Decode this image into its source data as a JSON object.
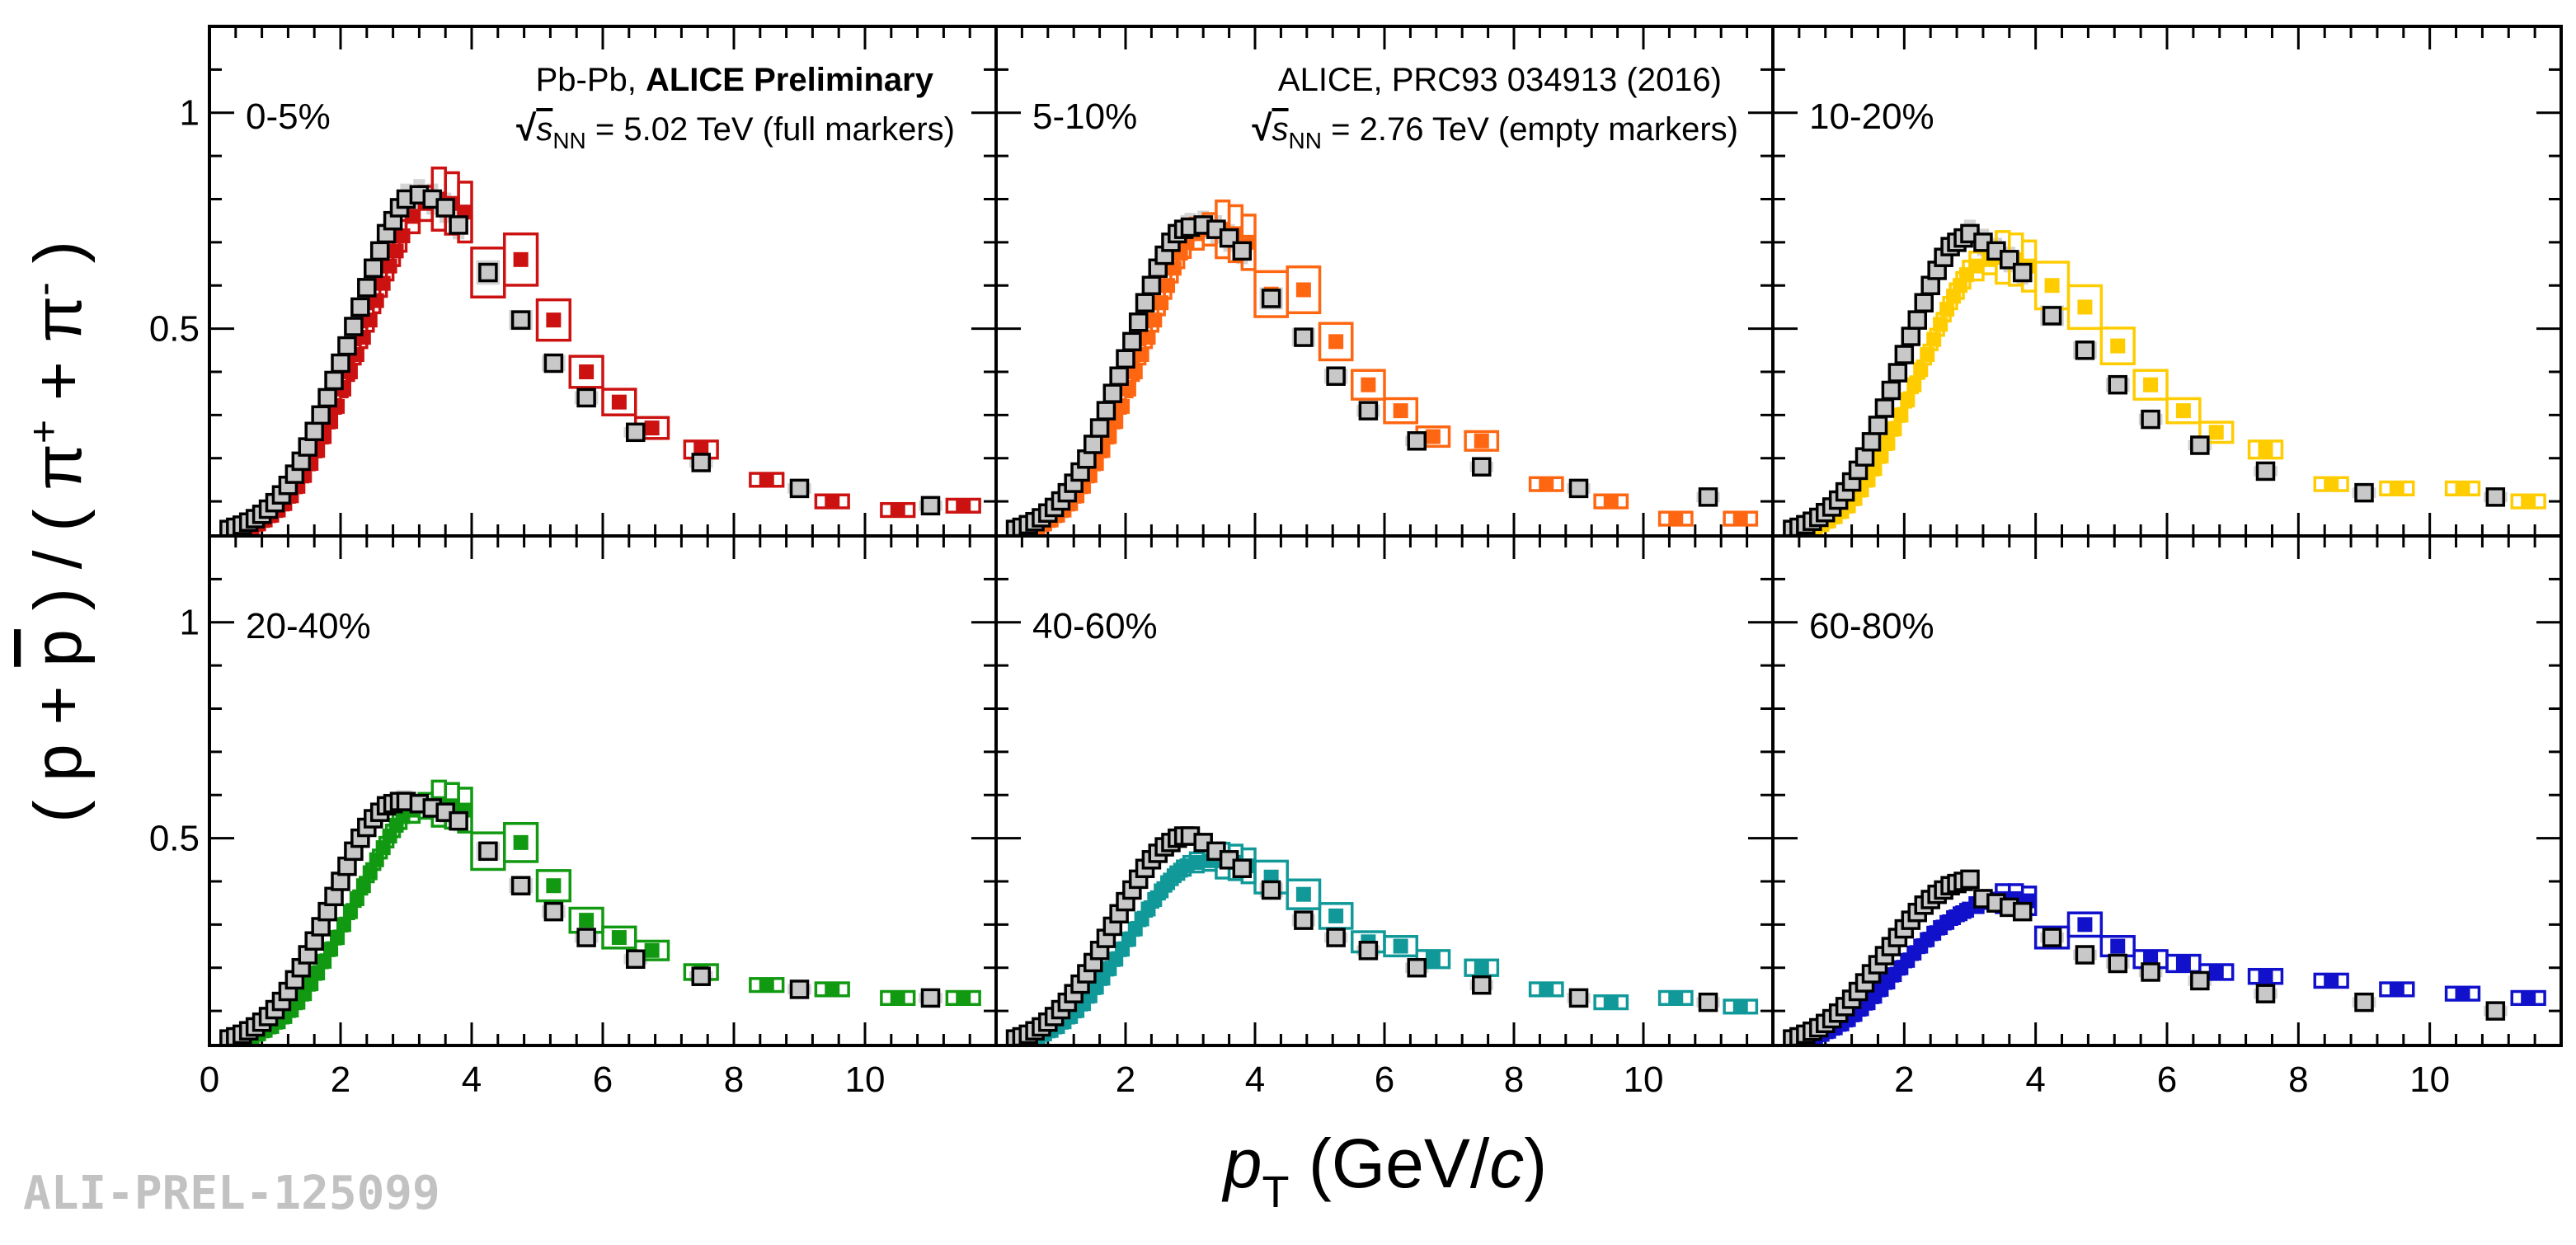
{
  "chart_data": {
    "type": "scatter",
    "title": "",
    "xlabel": "p_T (GeV/c)",
    "xlabel_parts": {
      "symbol": "p",
      "subscript": "T",
      "unit_open": " (GeV/",
      "unit_c": "c",
      "unit_close": ")"
    },
    "ylabel": "( p + p̄ ) / ( π⁺ + π⁻ )",
    "ylabel_parts": {
      "open": "( p + ",
      "pbar": "p",
      "mid": " ) / ( π",
      "plus": "+",
      "between": " + π",
      "minus": "-",
      "close": " )"
    },
    "xlim": [
      0,
      12
    ],
    "ylim": [
      0.02,
      1.2
    ],
    "x_ticks_first_column": [
      "0",
      "2",
      "4",
      "6",
      "8",
      "10"
    ],
    "x_ticks_other_columns": [
      "2",
      "4",
      "6",
      "8",
      "10"
    ],
    "y_ticks": [
      "0.5",
      "1"
    ],
    "legend": {
      "left": {
        "prefix": "Pb-Pb, ",
        "bold": "ALICE Preliminary",
        "energy_pre": "s",
        "energy_sub": "NN",
        "energy_post": " = 5.02 TeV (full markers)"
      },
      "right": {
        "line1": "ALICE, PRC93 034913 (2016)",
        "energy_pre": "s",
        "energy_sub": "NN",
        "energy_post": " = 2.76 TeV (empty markers)"
      }
    },
    "watermark": "ALI-PREL-125099",
    "reference_x": [
      0.3,
      0.4,
      0.5,
      0.6,
      0.7,
      0.8,
      0.9,
      1.0,
      1.1,
      1.2,
      1.3,
      1.4,
      1.5,
      1.6,
      1.7,
      1.8,
      1.9,
      2.0,
      2.1,
      2.2,
      2.3,
      2.4,
      2.5,
      2.6,
      2.7,
      2.8,
      2.9,
      3.0,
      3.2,
      3.4,
      3.6,
      3.8,
      4.25,
      4.75,
      5.25,
      5.75,
      6.5,
      7.5,
      9.0,
      11.0
    ],
    "main_x": [
      0.55,
      0.65,
      0.75,
      0.85,
      0.95,
      1.05,
      1.15,
      1.25,
      1.35,
      1.45,
      1.55,
      1.65,
      1.75,
      1.85,
      1.95,
      2.05,
      2.15,
      2.25,
      2.35,
      2.45,
      2.55,
      2.65,
      2.75,
      2.85,
      2.95,
      3.1,
      3.3,
      3.5,
      3.7,
      3.9,
      4.25,
      4.75,
      5.25,
      5.75,
      6.25,
      6.75,
      7.5,
      8.5,
      9.5,
      10.5,
      11.5
    ],
    "panels": [
      {
        "centrality": "0-5%",
        "main_color": "#cc1111",
        "main_y": [
          0.035,
          0.04,
          0.048,
          0.057,
          0.068,
          0.08,
          0.095,
          0.113,
          0.135,
          0.16,
          0.188,
          0.218,
          0.25,
          0.285,
          0.32,
          0.36,
          0.4,
          0.44,
          0.48,
          0.52,
          0.565,
          0.605,
          0.645,
          0.68,
          0.715,
          0.76,
          0.79,
          0.8,
          0.79,
          0.77,
          0.63,
          0.66,
          0.52,
          0.4,
          0.33,
          0.27,
          0.22,
          0.15,
          0.1,
          0.08,
          0.09
        ],
        "reference_y": [
          0.035,
          0.04,
          0.045,
          0.052,
          0.06,
          0.07,
          0.082,
          0.097,
          0.115,
          0.137,
          0.163,
          0.193,
          0.226,
          0.262,
          0.3,
          0.34,
          0.38,
          0.42,
          0.46,
          0.505,
          0.55,
          0.595,
          0.64,
          0.68,
          0.72,
          0.75,
          0.78,
          0.8,
          0.81,
          0.8,
          0.78,
          0.74,
          0.63,
          0.52,
          0.42,
          0.34,
          0.26,
          0.19,
          0.13,
          0.09
        ]
      },
      {
        "centrality": "5-10%",
        "main_color": "#ff6611",
        "main_y": [
          0.035,
          0.04,
          0.048,
          0.057,
          0.068,
          0.08,
          0.095,
          0.113,
          0.135,
          0.16,
          0.188,
          0.218,
          0.25,
          0.285,
          0.32,
          0.36,
          0.4,
          0.44,
          0.48,
          0.52,
          0.56,
          0.6,
          0.64,
          0.675,
          0.7,
          0.72,
          0.73,
          0.73,
          0.72,
          0.7,
          0.58,
          0.59,
          0.47,
          0.37,
          0.31,
          0.25,
          0.24,
          0.14,
          0.1,
          0.06,
          0.06
        ],
        "reference_y": [
          0.035,
          0.04,
          0.046,
          0.053,
          0.062,
          0.073,
          0.086,
          0.101,
          0.12,
          0.142,
          0.168,
          0.198,
          0.232,
          0.27,
          0.31,
          0.35,
          0.39,
          0.43,
          0.47,
          0.515,
          0.56,
          0.6,
          0.64,
          0.67,
          0.7,
          0.72,
          0.73,
          0.735,
          0.74,
          0.73,
          0.71,
          0.68,
          0.57,
          0.48,
          0.39,
          0.31,
          0.24,
          0.18,
          0.13,
          0.11
        ]
      },
      {
        "centrality": "10-20%",
        "main_color": "#ffcc00",
        "main_y": [
          0.035,
          0.04,
          0.047,
          0.055,
          0.065,
          0.077,
          0.09,
          0.107,
          0.127,
          0.15,
          0.176,
          0.205,
          0.235,
          0.268,
          0.3,
          0.335,
          0.37,
          0.405,
          0.44,
          0.475,
          0.51,
          0.545,
          0.575,
          0.6,
          0.625,
          0.645,
          0.66,
          0.665,
          0.66,
          0.645,
          0.6,
          0.55,
          0.46,
          0.37,
          0.31,
          0.26,
          0.22,
          0.14,
          0.13,
          0.13,
          0.1
        ],
        "reference_y": [
          0.035,
          0.04,
          0.046,
          0.054,
          0.063,
          0.074,
          0.087,
          0.103,
          0.122,
          0.145,
          0.172,
          0.203,
          0.238,
          0.276,
          0.316,
          0.357,
          0.398,
          0.44,
          0.482,
          0.52,
          0.56,
          0.6,
          0.635,
          0.665,
          0.69,
          0.7,
          0.71,
          0.72,
          0.7,
          0.68,
          0.66,
          0.63,
          0.53,
          0.45,
          0.37,
          0.29,
          0.23,
          0.17,
          0.12,
          0.11
        ]
      },
      {
        "centrality": "20-40%",
        "main_color": "#119911",
        "main_y": [
          0.035,
          0.04,
          0.047,
          0.055,
          0.064,
          0.075,
          0.087,
          0.102,
          0.12,
          0.14,
          0.163,
          0.188,
          0.215,
          0.243,
          0.27,
          0.3,
          0.33,
          0.36,
          0.39,
          0.42,
          0.45,
          0.478,
          0.505,
          0.53,
          0.55,
          0.565,
          0.575,
          0.58,
          0.575,
          0.565,
          0.47,
          0.49,
          0.39,
          0.31,
          0.27,
          0.24,
          0.19,
          0.16,
          0.15,
          0.13,
          0.13
        ],
        "reference_y": [
          0.035,
          0.04,
          0.046,
          0.054,
          0.063,
          0.074,
          0.087,
          0.103,
          0.122,
          0.145,
          0.172,
          0.2,
          0.23,
          0.262,
          0.295,
          0.33,
          0.365,
          0.4,
          0.435,
          0.47,
          0.5,
          0.525,
          0.545,
          0.56,
          0.575,
          0.58,
          0.585,
          0.585,
          0.58,
          0.57,
          0.56,
          0.54,
          0.47,
          0.39,
          0.33,
          0.27,
          0.22,
          0.18,
          0.15,
          0.13
        ]
      },
      {
        "centrality": "40-60%",
        "main_color": "#119999",
        "main_y": [
          0.035,
          0.04,
          0.047,
          0.055,
          0.064,
          0.075,
          0.087,
          0.101,
          0.117,
          0.135,
          0.155,
          0.176,
          0.198,
          0.22,
          0.243,
          0.266,
          0.29,
          0.313,
          0.336,
          0.358,
          0.378,
          0.397,
          0.413,
          0.426,
          0.436,
          0.444,
          0.448,
          0.448,
          0.444,
          0.436,
          0.41,
          0.37,
          0.32,
          0.26,
          0.25,
          0.22,
          0.2,
          0.15,
          0.12,
          0.13,
          0.11
        ],
        "reference_y": [
          0.035,
          0.04,
          0.046,
          0.054,
          0.063,
          0.074,
          0.087,
          0.103,
          0.12,
          0.14,
          0.162,
          0.186,
          0.212,
          0.24,
          0.268,
          0.296,
          0.325,
          0.353,
          0.38,
          0.405,
          0.43,
          0.45,
          0.465,
          0.48,
          0.49,
          0.5,
          0.505,
          0.505,
          0.49,
          0.47,
          0.45,
          0.43,
          0.38,
          0.31,
          0.27,
          0.24,
          0.2,
          0.16,
          0.13,
          0.12
        ]
      },
      {
        "centrality": "60-80%",
        "main_color": "#1111cc",
        "main_y": [
          0.035,
          0.04,
          0.046,
          0.053,
          0.061,
          0.07,
          0.08,
          0.092,
          0.105,
          0.119,
          0.134,
          0.15,
          0.167,
          0.184,
          0.2,
          0.217,
          0.234,
          0.25,
          0.265,
          0.28,
          0.293,
          0.305,
          0.316,
          0.325,
          0.333,
          0.345,
          0.355,
          0.36,
          0.36,
          0.355,
          0.27,
          0.3,
          0.25,
          0.22,
          0.21,
          0.19,
          0.18,
          0.17,
          0.15,
          0.14,
          0.13
        ],
        "reference_y": [
          0.035,
          0.04,
          0.046,
          0.053,
          0.061,
          0.071,
          0.082,
          0.095,
          0.11,
          0.127,
          0.145,
          0.165,
          0.186,
          0.207,
          0.228,
          0.249,
          0.27,
          0.29,
          0.31,
          0.328,
          0.345,
          0.358,
          0.37,
          0.38,
          0.39,
          0.395,
          0.4,
          0.405,
          0.36,
          0.35,
          0.34,
          0.33,
          0.27,
          0.23,
          0.21,
          0.19,
          0.17,
          0.14,
          0.12,
          0.1
        ]
      }
    ]
  }
}
